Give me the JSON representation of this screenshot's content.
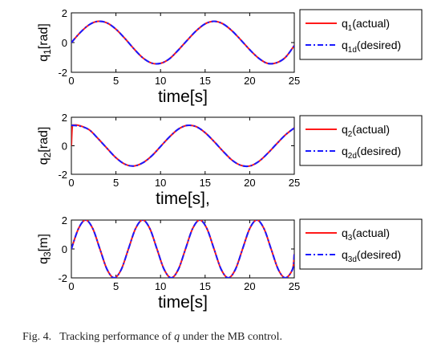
{
  "colors": {
    "actual": "#ff1a1a",
    "desired": "#1a1aff",
    "axis": "#000000"
  },
  "caption": {
    "label": "Fig. 4.",
    "text_before": "Tracking performance of ",
    "symbol": "q",
    "text_after": " under the MB control."
  },
  "chart_data": [
    {
      "type": "line",
      "xlabel": "time[s]",
      "ylabel": {
        "base": "q",
        "sub": "1",
        "rest": "[rad]"
      },
      "xlim": [
        0,
        25
      ],
      "ylim": [
        -2,
        2
      ],
      "xticks": [
        0,
        5,
        10,
        15,
        20,
        25
      ],
      "yticks": [
        -2,
        0,
        2
      ],
      "grid": false,
      "legend_position": "right",
      "series": [
        {
          "legend": {
            "base": "q",
            "sub": "1",
            "rest": "(actual)"
          },
          "style": "solid",
          "color": "#ff1a1a",
          "x": [
            0,
            1,
            2,
            3,
            4,
            5,
            6,
            7,
            8,
            9,
            10,
            11,
            12,
            13,
            14,
            15,
            16,
            17,
            18,
            19,
            20,
            21,
            22,
            23,
            24,
            25
          ],
          "y": [
            0,
            0.68,
            1.2,
            1.43,
            1.32,
            0.9,
            0.28,
            -0.41,
            -1.02,
            -1.38,
            -1.4,
            -1.09,
            -0.5,
            0.16,
            0.79,
            1.26,
            1.43,
            1.26,
            0.8,
            0.18,
            -0.48,
            -1.05,
            -1.4,
            -1.36,
            -1.0,
            -0.2
          ]
        },
        {
          "legend": {
            "base": "q",
            "sub": "1d",
            "rest": "(desired)"
          },
          "style": "dashdot",
          "color": "#1a1aff",
          "x": [
            0,
            1,
            2,
            3,
            4,
            5,
            6,
            7,
            8,
            9,
            10,
            11,
            12,
            13,
            14,
            15,
            16,
            17,
            18,
            19,
            20,
            21,
            22,
            23,
            24,
            25
          ],
          "y": [
            0,
            0.68,
            1.2,
            1.43,
            1.32,
            0.9,
            0.28,
            -0.41,
            -1.02,
            -1.38,
            -1.4,
            -1.09,
            -0.5,
            0.16,
            0.79,
            1.26,
            1.43,
            1.26,
            0.8,
            0.18,
            -0.48,
            -1.05,
            -1.4,
            -1.36,
            -1.0,
            -0.2
          ]
        }
      ]
    },
    {
      "type": "line",
      "xlabel": "time[s],",
      "ylabel": {
        "base": "q",
        "sub": "2",
        "rest": "[rad]"
      },
      "xlim": [
        0,
        25
      ],
      "ylim": [
        -2,
        2
      ],
      "xticks": [
        0,
        5,
        10,
        15,
        20,
        25
      ],
      "yticks": [
        -2,
        0,
        2
      ],
      "grid": false,
      "legend_position": "right",
      "series": [
        {
          "legend": {
            "base": "q",
            "sub": "2",
            "rest": "(actual)"
          },
          "style": "solid",
          "color": "#ff1a1a",
          "x": [
            0,
            0.1,
            0.3,
            1,
            2,
            3,
            4,
            5,
            6,
            7,
            8,
            9,
            10,
            11,
            12,
            13,
            14,
            15,
            16,
            17,
            18,
            19,
            20,
            21,
            22,
            23,
            24,
            25
          ],
          "y": [
            0,
            1.3,
            1.45,
            1.4,
            1.12,
            0.5,
            -0.18,
            -0.84,
            -1.29,
            -1.42,
            -1.2,
            -0.72,
            -0.05,
            0.62,
            1.17,
            1.43,
            1.34,
            0.92,
            0.3,
            -0.38,
            -1.0,
            -1.37,
            -1.42,
            -1.11,
            -0.54,
            0.12,
            0.76,
            1.25
          ]
        },
        {
          "legend": {
            "base": "q",
            "sub": "2d",
            "rest": "(desired)"
          },
          "style": "dashdot",
          "color": "#1a1aff",
          "x": [
            0,
            1,
            2,
            3,
            4,
            5,
            6,
            7,
            8,
            9,
            10,
            11,
            12,
            13,
            14,
            15,
            16,
            17,
            18,
            19,
            20,
            21,
            22,
            23,
            24,
            25
          ],
          "y": [
            1.44,
            1.37,
            1.12,
            0.5,
            -0.18,
            -0.84,
            -1.29,
            -1.42,
            -1.2,
            -0.72,
            -0.05,
            0.62,
            1.17,
            1.43,
            1.34,
            0.92,
            0.3,
            -0.38,
            -1.0,
            -1.37,
            -1.42,
            -1.11,
            -0.54,
            0.12,
            0.76,
            1.25
          ]
        }
      ]
    },
    {
      "type": "line",
      "xlabel": "time[s]",
      "ylabel": {
        "base": "q",
        "sub": "3",
        "rest": "[m]"
      },
      "xlim": [
        0,
        25
      ],
      "ylim": [
        -2,
        2
      ],
      "xticks": [
        0,
        5,
        10,
        15,
        20,
        25
      ],
      "yticks": [
        -2,
        0,
        2
      ],
      "grid": false,
      "legend_position": "right",
      "series": [
        {
          "legend": {
            "base": "q",
            "sub": "3",
            "rest": "(actual)"
          },
          "style": "solid",
          "color": "#ff1a1a",
          "x": [
            0,
            0.8,
            1.6,
            2.4,
            3.2,
            4.0,
            4.8,
            5.6,
            6.4,
            7.2,
            8.0,
            8.8,
            9.6,
            10.4,
            11.2,
            12.0,
            12.8,
            13.6,
            14.4,
            15.2,
            16.0,
            16.8,
            17.6,
            18.4,
            19.2,
            20.0,
            20.8,
            21.6,
            22.4,
            23.2,
            24.0,
            24.8,
            25.0
          ],
          "y": [
            0,
            1.41,
            2.0,
            1.41,
            0.0,
            -1.41,
            -2.0,
            -1.41,
            0.0,
            1.41,
            2.0,
            1.41,
            0.0,
            -1.41,
            -2.0,
            -1.41,
            0.0,
            1.41,
            2.0,
            1.41,
            0.0,
            -1.41,
            -2.0,
            -1.41,
            0.0,
            1.41,
            2.0,
            1.41,
            0.0,
            -1.41,
            -2.0,
            -1.41,
            -0.35
          ]
        },
        {
          "legend": {
            "base": "q",
            "sub": "3d",
            "rest": "(desired)"
          },
          "style": "dashdot",
          "color": "#1a1aff",
          "x": [
            0,
            0.8,
            1.6,
            2.4,
            3.2,
            4.0,
            4.8,
            5.6,
            6.4,
            7.2,
            8.0,
            8.8,
            9.6,
            10.4,
            11.2,
            12.0,
            12.8,
            13.6,
            14.4,
            15.2,
            16.0,
            16.8,
            17.6,
            18.4,
            19.2,
            20.0,
            20.8,
            21.6,
            22.4,
            23.2,
            24.0,
            24.8,
            25.0
          ],
          "y": [
            0,
            1.41,
            2.0,
            1.41,
            0.0,
            -1.41,
            -2.0,
            -1.41,
            0.0,
            1.41,
            2.0,
            1.41,
            0.0,
            -1.41,
            -2.0,
            -1.41,
            0.0,
            1.41,
            2.0,
            1.41,
            0.0,
            -1.41,
            -2.0,
            -1.41,
            0.0,
            1.41,
            2.0,
            1.41,
            0.0,
            -1.41,
            -2.0,
            -1.41,
            -0.35
          ]
        }
      ]
    }
  ]
}
